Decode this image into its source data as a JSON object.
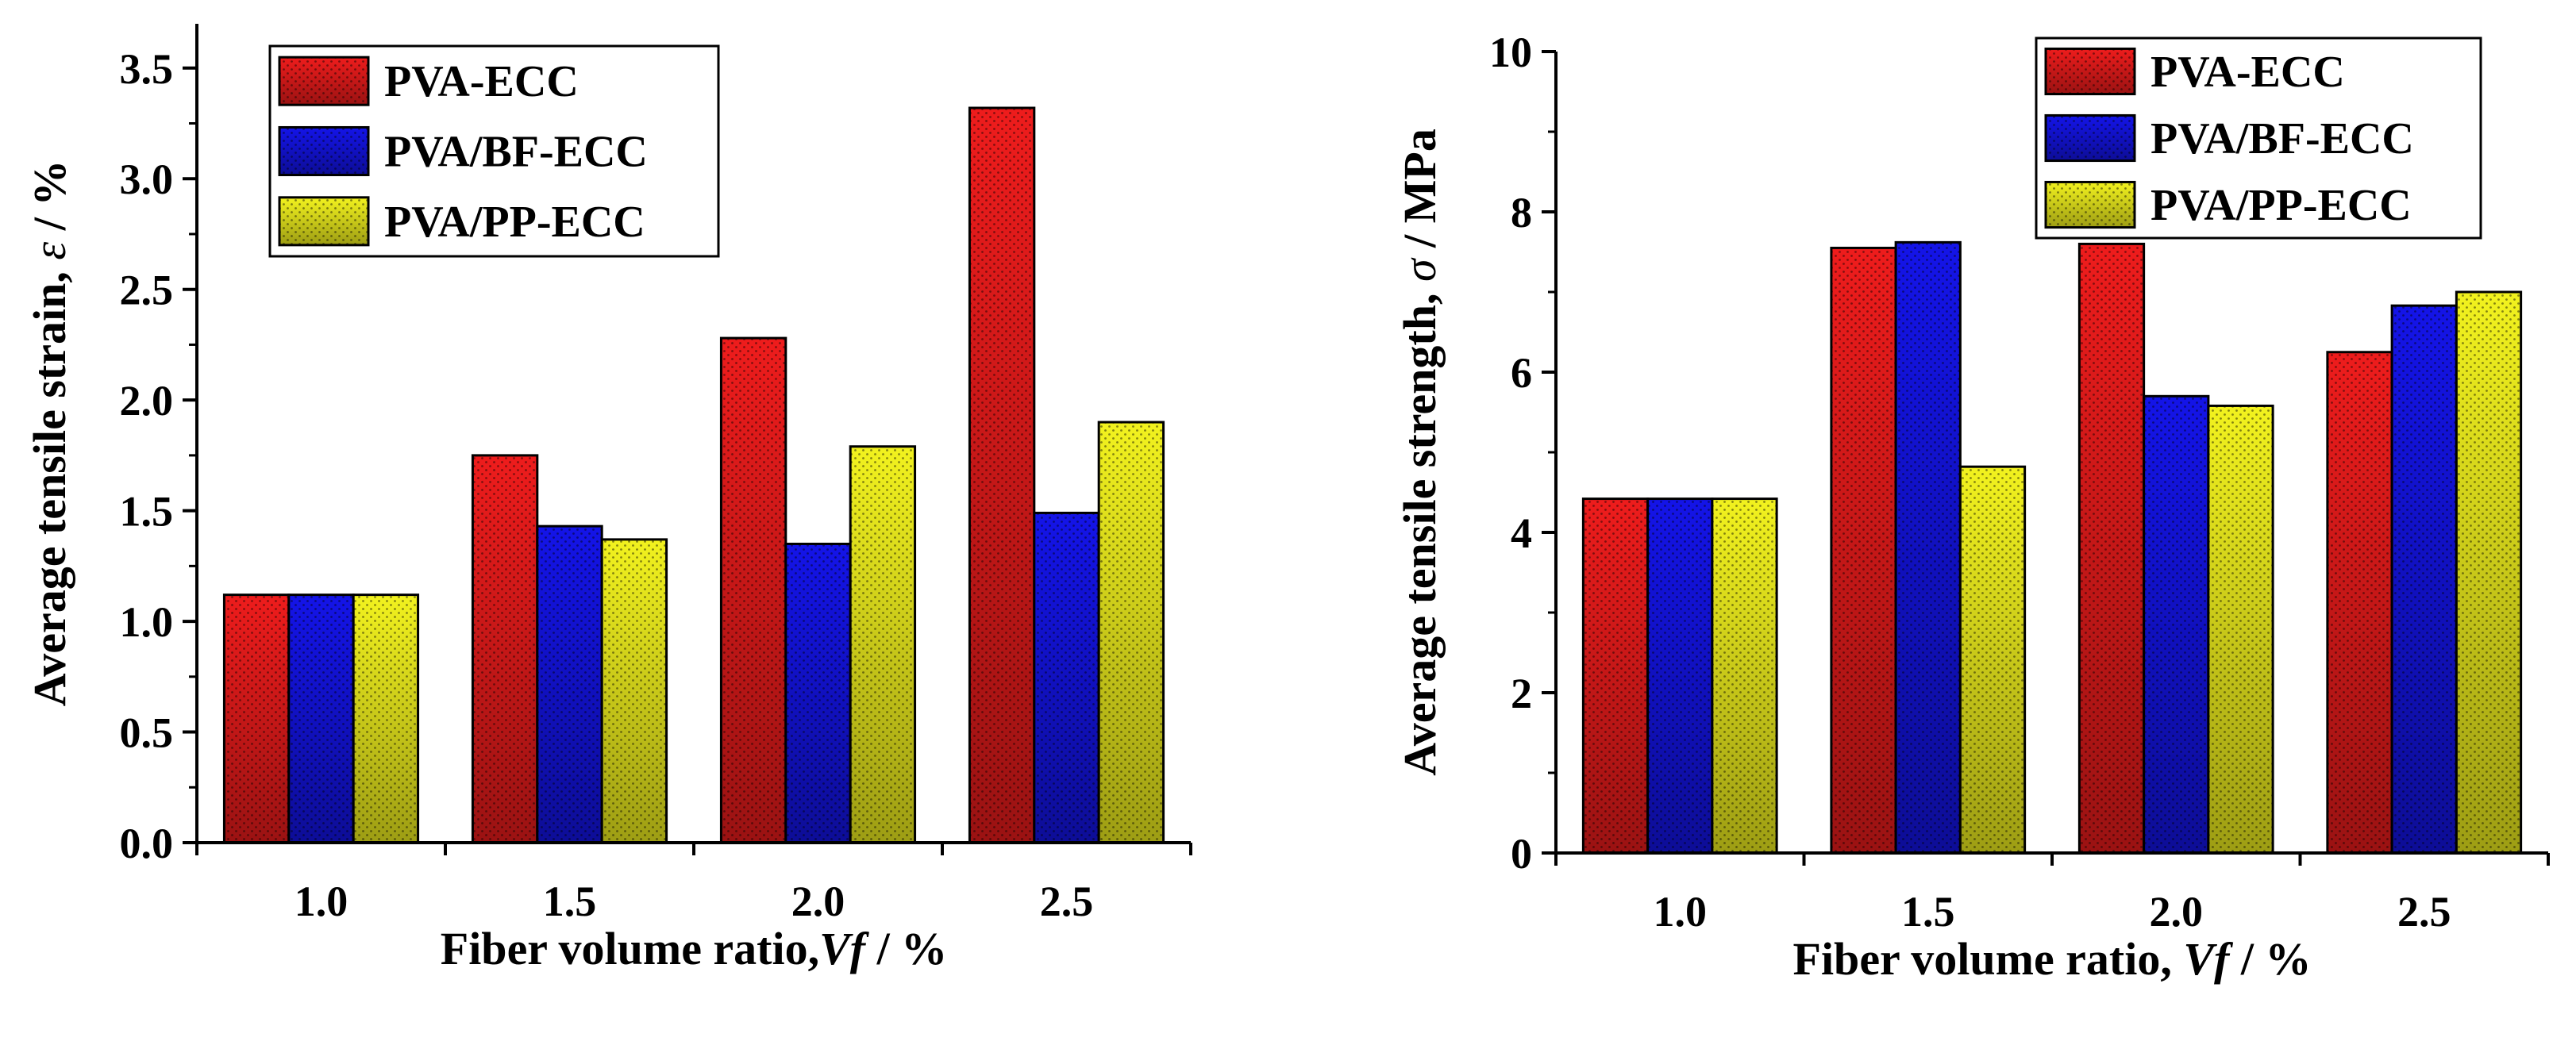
{
  "chart_data": [
    {
      "type": "bar",
      "categories": [
        "1.0",
        "1.5",
        "2.0",
        "2.5"
      ],
      "series": [
        {
          "name": "PVA-ECC",
          "values": [
            1.12,
            1.75,
            2.28,
            3.32
          ]
        },
        {
          "name": "PVA/BF-ECC",
          "values": [
            1.12,
            1.43,
            1.35,
            1.49
          ]
        },
        {
          "name": "PVA/PP-ECC",
          "values": [
            1.12,
            1.37,
            1.79,
            1.9
          ]
        }
      ],
      "xlabel": {
        "text": "Fiber volume ratio,",
        "var": "Vf",
        "unit": " / %"
      },
      "ylabel": {
        "text": "Average tensile strain,",
        "var": "ε",
        "unit": " / %"
      },
      "ylim": [
        0,
        3.7
      ],
      "yticks": [
        0.0,
        0.5,
        1.0,
        1.5,
        2.0,
        2.5,
        3.0,
        3.5
      ],
      "ytick_labels": [
        "0.0",
        "0.5",
        "1.0",
        "1.5",
        "2.0",
        "2.5",
        "3.0",
        "3.5"
      ],
      "legend": "top-left"
    },
    {
      "type": "bar",
      "categories": [
        "1.0",
        "1.5",
        "2.0",
        "2.5"
      ],
      "series": [
        {
          "name": "PVA-ECC",
          "values": [
            4.42,
            7.55,
            7.6,
            6.25
          ]
        },
        {
          "name": "PVA/BF-ECC",
          "values": [
            4.42,
            7.62,
            5.7,
            6.83
          ]
        },
        {
          "name": "PVA/PP-ECC",
          "values": [
            4.42,
            4.82,
            5.58,
            7.0
          ]
        }
      ],
      "xlabel": {
        "text": "Fiber volume ratio, ",
        "var": "Vf",
        "unit": " / %"
      },
      "ylabel": {
        "text": "Average tensile strength,",
        "var": "σ",
        "unit": " / MPa"
      },
      "ylim": [
        0,
        10
      ],
      "yticks": [
        0,
        2,
        4,
        6,
        8,
        10
      ],
      "ytick_labels": [
        "0",
        "2",
        "4",
        "6",
        "8",
        "10"
      ],
      "legend": "top-right"
    }
  ],
  "colors": {
    "PVA-ECC": "#ee1c1c",
    "PVA/BF-ECC": "#1414e8",
    "PVA/PP-ECC": "#f2f21e"
  }
}
